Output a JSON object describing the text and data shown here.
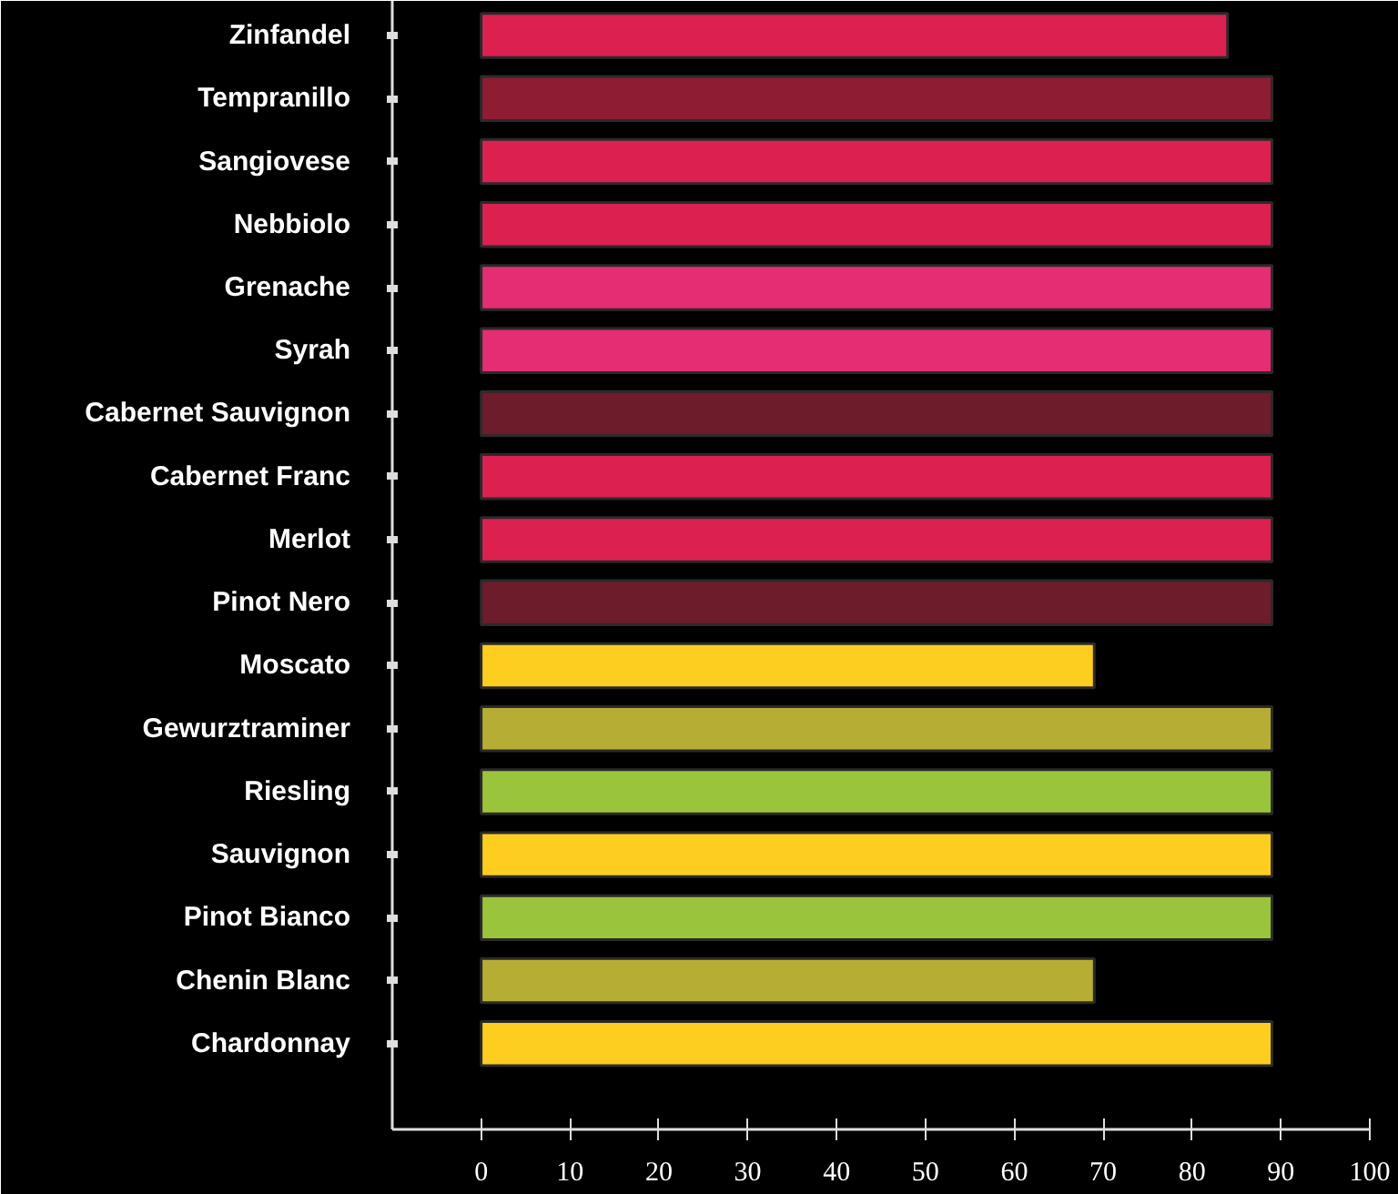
{
  "chart_data": {
    "type": "bar",
    "orientation": "horizontal",
    "categories": [
      "Zinfandel",
      "Tempranillo",
      "Sangiovese",
      "Nebbiolo",
      "Grenache",
      "Syrah",
      "Cabernet Sauvignon",
      "Cabernet Franc",
      "Merlot",
      "Pinot Nero",
      "Moscato",
      "Gewurztraminer",
      "Riesling",
      "Sauvignon",
      "Pinot Bianco",
      "Chenin Blanc",
      "Chardonnay"
    ],
    "values": [
      84,
      89,
      89,
      89,
      89,
      89,
      89,
      89,
      89,
      89,
      69,
      89,
      89,
      89,
      89,
      69,
      89
    ],
    "colors": [
      "#dc2151",
      "#8e1c32",
      "#dc2151",
      "#dc2151",
      "#e42d72",
      "#e42d72",
      "#6c1c2b",
      "#dc2151",
      "#dc2151",
      "#6c1c2b",
      "#fdcd1f",
      "#b6ad35",
      "#9bc43d",
      "#fdcd1f",
      "#9bc43d",
      "#b6ad35",
      "#fdcd1f"
    ],
    "xlim": [
      -10,
      100
    ],
    "xticks": [
      0,
      10,
      20,
      30,
      40,
      50,
      60,
      70,
      80,
      90,
      100
    ],
    "grid": false
  }
}
